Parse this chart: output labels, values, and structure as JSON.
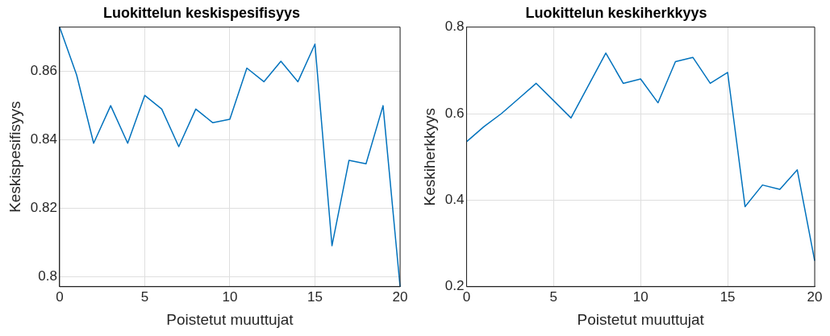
{
  "chart_data": [
    {
      "type": "line",
      "title": "Luokittelun keskispesifisyys",
      "xlabel": "Poistetut muuttujat",
      "ylabel": "Keskispesifisyys",
      "x": [
        0,
        1,
        2,
        3,
        4,
        5,
        6,
        7,
        8,
        9,
        10,
        11,
        12,
        13,
        14,
        15,
        16,
        17,
        18,
        19,
        20
      ],
      "series": [
        {
          "color": "#0072bd",
          "values": [
            0.873,
            0.859,
            0.839,
            0.85,
            0.839,
            0.853,
            0.849,
            0.838,
            0.849,
            0.845,
            0.846,
            0.861,
            0.857,
            0.863,
            0.857,
            0.868,
            0.809,
            0.834,
            0.833,
            0.85,
            0.797
          ]
        }
      ],
      "xlim": [
        0,
        20
      ],
      "xticks": [
        0,
        5,
        10,
        15,
        20
      ],
      "ylim": [
        0.797,
        0.873
      ],
      "yticks": [
        0.8,
        0.82,
        0.84,
        0.86
      ],
      "grid": true,
      "legend": false,
      "marker": "none",
      "line_style": "solid"
    },
    {
      "type": "line",
      "title": "Luokittelun keskiherkkyys",
      "xlabel": "Poistetut muuttujat",
      "ylabel": "Keskiherkkyys",
      "x": [
        0,
        1,
        2,
        3,
        4,
        5,
        6,
        7,
        8,
        9,
        10,
        11,
        12,
        13,
        14,
        15,
        16,
        17,
        18,
        19,
        20
      ],
      "series": [
        {
          "color": "#0072bd",
          "values": [
            0.535,
            0.57,
            0.6,
            0.635,
            0.67,
            0.63,
            0.59,
            0.665,
            0.74,
            0.67,
            0.68,
            0.625,
            0.72,
            0.73,
            0.67,
            0.695,
            0.385,
            0.435,
            0.425,
            0.47,
            0.26
          ]
        }
      ],
      "xlim": [
        0,
        20
      ],
      "xticks": [
        0,
        5,
        10,
        15,
        20
      ],
      "ylim": [
        0.2,
        0.8
      ],
      "yticks": [
        0.2,
        0.4,
        0.6,
        0.8
      ],
      "grid": true,
      "legend": false,
      "marker": "none",
      "line_style": "solid"
    }
  ]
}
